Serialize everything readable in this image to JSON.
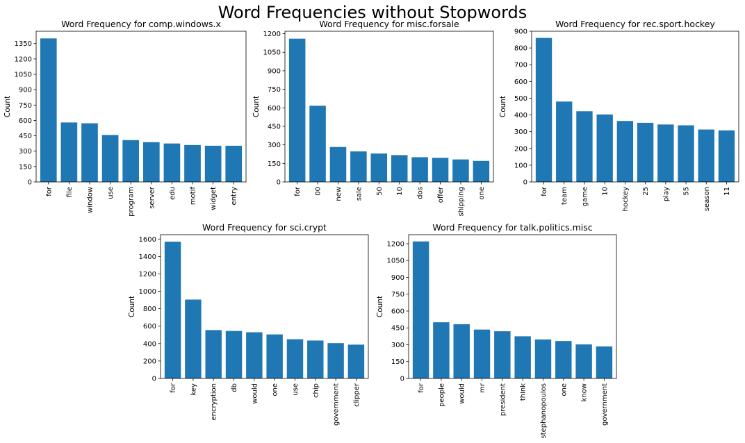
{
  "figure_title": "Word Frequencies without Stopwords",
  "colors": {
    "bar": "#1f77b4"
  },
  "chart_data": [
    {
      "type": "bar",
      "title": "Word Frequency for comp.windows.x",
      "ylabel": "Count",
      "categories": [
        "for",
        "file",
        "window",
        "use",
        "program",
        "server",
        "edu",
        "motif",
        "widget",
        "entry"
      ],
      "values": [
        1400,
        580,
        572,
        458,
        408,
        388,
        375,
        360,
        353,
        353
      ],
      "yticks": [
        0,
        150,
        300,
        450,
        600,
        750,
        900,
        1050,
        1200,
        1350
      ],
      "ylim": [
        0,
        1470
      ]
    },
    {
      "type": "bar",
      "title": "Word Frequency for misc.forsale",
      "ylabel": "Count",
      "categories": [
        "for",
        "00",
        "new",
        "sale",
        "50",
        "10",
        "dos",
        "offer",
        "shipping",
        "one"
      ],
      "values": [
        1160,
        617,
        283,
        247,
        230,
        217,
        200,
        195,
        182,
        170
      ],
      "yticks": [
        0,
        150,
        300,
        450,
        600,
        750,
        900,
        1050,
        1200
      ],
      "ylim": [
        0,
        1220
      ]
    },
    {
      "type": "bar",
      "title": "Word Frequency for rec.sport.hockey",
      "ylabel": "Count",
      "categories": [
        "for",
        "team",
        "game",
        "10",
        "hockey",
        "25",
        "play",
        "55",
        "season",
        "11"
      ],
      "values": [
        860,
        480,
        422,
        403,
        364,
        353,
        343,
        338,
        313,
        308
      ],
      "yticks": [
        0,
        100,
        200,
        300,
        400,
        500,
        600,
        700,
        800,
        900
      ],
      "ylim": [
        0,
        900
      ]
    },
    {
      "type": "bar",
      "title": "Word Frequency for sci.crypt",
      "ylabel": "Count",
      "categories": [
        "for",
        "key",
        "encryption",
        "db",
        "would",
        "one",
        "use",
        "chip",
        "government",
        "clipper"
      ],
      "values": [
        1570,
        905,
        555,
        545,
        530,
        505,
        450,
        435,
        405,
        388
      ],
      "yticks": [
        0,
        200,
        400,
        600,
        800,
        1000,
        1200,
        1400,
        1600
      ],
      "ylim": [
        0,
        1650
      ]
    },
    {
      "type": "bar",
      "title": "Word Frequency for talk.politics.misc",
      "ylabel": "Count",
      "categories": [
        "for",
        "people",
        "would",
        "mr",
        "president",
        "think",
        "stephanopoulos",
        "one",
        "know",
        "government"
      ],
      "values": [
        1220,
        500,
        483,
        435,
        420,
        375,
        347,
        333,
        303,
        285
      ],
      "yticks": [
        0,
        150,
        300,
        450,
        600,
        750,
        900,
        1050,
        1200
      ],
      "ylim": [
        0,
        1280
      ]
    }
  ]
}
